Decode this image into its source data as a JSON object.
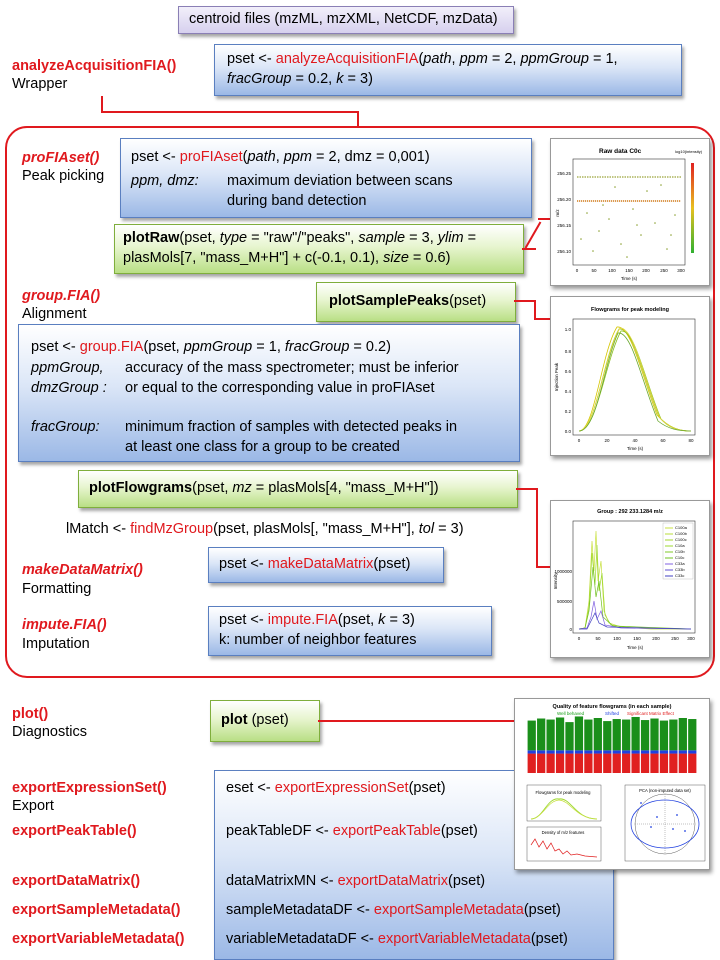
{
  "input": {
    "label": "centroid files (mzML, mzXML, NetCDF, mzData)"
  },
  "analyze": {
    "fn": "analyzeAcquisitionFIA()",
    "sub": "Wrapper",
    "code": [
      [
        "pset <- ",
        "analyzeAcquisitionFIA",
        "(",
        "path",
        ",  ",
        "ppm",
        " = 2, ",
        "ppmGroup",
        " = 1,"
      ],
      [
        "fracGroup",
        " = 0.2, ",
        "k",
        " = 3)"
      ]
    ]
  },
  "profia": {
    "fn": "proFIAset()",
    "sub": "Peak picking",
    "code1": [
      "pset <- ",
      "proFIAset",
      "(",
      "path",
      ", ",
      "ppm",
      " = 2, dmz = 0,001)"
    ],
    "param_names": "ppm, dmz:",
    "param_desc1": "maximum deviation between scans",
    "param_desc2": "during band detection"
  },
  "plotraw": {
    "fn": "plotRaw",
    "args1": [
      "(pset, ",
      "type",
      " = \"raw\"/\"peaks\", ",
      "sample",
      " = 3, ",
      "ylim",
      " ="
    ],
    "args2": [
      "plasMols[7, \"mass_M+H\"] + c(-0.1, 0.1), ",
      "size",
      " = 0.6)"
    ]
  },
  "group": {
    "fn": "group.FIA()",
    "sub": "Alignment",
    "code1": [
      "pset <- ",
      "group.FIA",
      "(pset, ",
      "ppmGroup",
      " = 1, ",
      "fracGroup",
      " = 0.2)"
    ],
    "p1_name": "ppmGroup,",
    "p1_desc": "accuracy of the mass spectrometer; must be inferior",
    "p2_name": "dmzGroup :",
    "p2_desc": "or equal to the corresponding value in proFIAset",
    "p3_name": "fracGroup:",
    "p3_desc1": "minimum fraction of samples with detected peaks in",
    "p3_desc2": "at least one class for a group to be created"
  },
  "plotsample": {
    "fn": "plotSamplePeaks",
    "args": "(pset)"
  },
  "plotflow": {
    "fn": "plotFlowgrams",
    "args": [
      "(pset, ",
      "mz",
      " = plasMols[4, \"mass_M+H\"])"
    ]
  },
  "lmatch": {
    "parts": [
      "lMatch <- ",
      "findMzGroup",
      "(pset, plasMols[, \"mass_M+H\"], ",
      "tol",
      " = 3)"
    ]
  },
  "makedm": {
    "fn": "makeDataMatrix()",
    "sub": "Formatting",
    "code": [
      "pset <- ",
      "makeDataMatrix",
      "(pset)"
    ]
  },
  "impute": {
    "fn": "impute.FIA()",
    "sub": "Imputation",
    "code1": [
      "pset <- ",
      "impute.FIA",
      "(pset,  ",
      "k",
      " = 3)"
    ],
    "code2": "k: number of neighbor features"
  },
  "plot": {
    "fn": "plot()",
    "sub": "Diagnostics",
    "box_fn": "plot",
    "box_args": " (pset)"
  },
  "export": {
    "items": [
      {
        "fn": "exportExpressionSet()",
        "sub": "Export",
        "lhs": "eset <- ",
        "call": "exportExpressionSet",
        "rhs": "(pset)"
      },
      {
        "fn": "exportPeakTable()",
        "sub": "",
        "lhs": "peakTableDF <- ",
        "call": "exportPeakTable",
        "rhs": "(pset)"
      },
      {
        "fn": "exportDataMatrix()",
        "sub": "",
        "lhs": "dataMatrixMN <- ",
        "call": "exportDataMatrix",
        "rhs": "(pset)"
      },
      {
        "fn": "exportSampleMetadata()",
        "sub": "",
        "lhs": "sampleMetadataDF <- ",
        "call": "exportSampleMetadata",
        "rhs": "(pset)"
      },
      {
        "fn": "exportVariableMetadata()",
        "sub": "",
        "lhs": "variableMetadataDF <- ",
        "call": "exportVariableMetadata",
        "rhs": "(pset)"
      }
    ]
  },
  "thumbs": {
    "raw": {
      "title": "Raw data C0c",
      "legend_title": "log10(intensity)",
      "ylabel": "m/z",
      "xlabel": "Time (s)",
      "yticks": [
        "256.10",
        "256.15",
        "256.20",
        "256.25"
      ],
      "xticks": [
        "0",
        "50",
        "100",
        "150",
        "200",
        "250",
        "300"
      ]
    },
    "peak": {
      "title": "Flowgrams for peak modeling",
      "ylabel": "Injection Peak",
      "xlabel": "Time (s)",
      "yticks": [
        "0.0",
        "0.2",
        "0.4",
        "0.6",
        "0.8",
        "1.0"
      ],
      "xticks": [
        "0",
        "20",
        "40",
        "60",
        "80"
      ]
    },
    "group": {
      "title": "Group : 292 233.1284 m/z",
      "ylabel": "Intensity",
      "xlabel": "Time (s)",
      "yticks": [
        "0",
        "500000",
        "1000000"
      ],
      "xticks": [
        "0",
        "50",
        "100",
        "150",
        "200",
        "250",
        "300"
      ],
      "legend": [
        "C100a",
        "C100b",
        "C100c",
        "C10a",
        "C10b",
        "C10c",
        "C33a",
        "C33b",
        "C33c"
      ]
    },
    "diag": {
      "title": "Quality of feature flowgrams (in each sample)",
      "legend": [
        "Well behaved",
        "Shifted",
        "Significant Matrix Effect"
      ],
      "sub1": "Flowgrams for peak modeling",
      "sub2": "Density of m/z features",
      "sub3": "PCA (non-imputed data set)"
    }
  },
  "colors": {
    "red": "#e0191e",
    "blue_box": "#9bb8e6",
    "green_box": "#b9df85",
    "lavender_box": "#d6d0ee"
  }
}
